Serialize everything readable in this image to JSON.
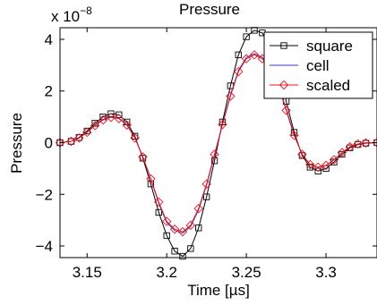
{
  "chart_data": {
    "type": "line",
    "title": "Pressure",
    "xlabel": "Time [µs]",
    "ylabel": "Pressure",
    "y_multiplier_label": "x 10",
    "y_multiplier_exp": "−8",
    "xlim": [
      3.133,
      3.332
    ],
    "ylim": [
      -4.45e-08,
      4.45e-08
    ],
    "x_ticks": [
      3.15,
      3.2,
      3.25,
      3.3
    ],
    "x_tick_labels": [
      "3.15",
      "3.2",
      "3.25",
      "3.3"
    ],
    "y_ticks": [
      -4e-08,
      -2e-08,
      0,
      2e-08,
      4e-08
    ],
    "y_tick_labels": [
      "−4",
      "−2",
      "0",
      "2",
      "4"
    ],
    "grid": false,
    "legend_placement": "top-right",
    "x": [
      3.133,
      3.14,
      3.145,
      3.15,
      3.155,
      3.16,
      3.165,
      3.17,
      3.175,
      3.18,
      3.185,
      3.19,
      3.195,
      3.2,
      3.205,
      3.21,
      3.215,
      3.22,
      3.225,
      3.23,
      3.235,
      3.24,
      3.245,
      3.25,
      3.255,
      3.26,
      3.265,
      3.27,
      3.275,
      3.28,
      3.285,
      3.29,
      3.295,
      3.3,
      3.305,
      3.31,
      3.315,
      3.32,
      3.325,
      3.332
    ],
    "series": [
      {
        "name": "square",
        "color": "#000000",
        "marker": "square",
        "values": [
          0.0,
          5e-10,
          2e-09,
          4.5e-09,
          7.5e-09,
          1e-08,
          1.12e-08,
          1.08e-08,
          8e-09,
          2.5e-09,
          -6e-09,
          -1.6e-08,
          -2.7e-08,
          -3.6e-08,
          -4.2e-08,
          -4.4e-08,
          -4.1e-08,
          -3.3e-08,
          -2.1e-08,
          -7e-09,
          8e-09,
          2.2e-08,
          3.4e-08,
          4.1e-08,
          4.35e-08,
          4.25e-08,
          3.7e-08,
          2.8e-08,
          1.6e-08,
          4e-09,
          -5e-09,
          -9.5e-09,
          -1.1e-08,
          -1e-08,
          -7.5e-09,
          -4.5e-09,
          -2e-09,
          -7e-10,
          -2e-10,
          0.0
        ]
      },
      {
        "name": "cell",
        "color": "#3a3ab0",
        "marker": "none",
        "values": [
          0.0,
          5e-10,
          1.8e-09,
          4e-09,
          6.8e-09,
          9e-09,
          1e-08,
          9.5e-09,
          7e-09,
          2e-09,
          -5.5e-09,
          -1.4e-08,
          -2.35e-08,
          -3.1e-08,
          -3.4e-08,
          -3.5e-08,
          -3.25e-08,
          -2.6e-08,
          -1.65e-08,
          -5e-09,
          7e-09,
          1.85e-08,
          2.8e-08,
          3.3e-08,
          3.45e-08,
          3.3e-08,
          2.95e-08,
          2.25e-08,
          1.3e-08,
          3e-09,
          -4.5e-09,
          -8.5e-09,
          -9.5e-09,
          -8.8e-09,
          -6.6e-09,
          -3.8e-09,
          -1.6e-09,
          -5e-10,
          -1e-10,
          0.0
        ]
      },
      {
        "name": "scaled",
        "color": "#e8141e",
        "marker": "diamond",
        "values": [
          0.0,
          5e-10,
          1.8e-09,
          4e-09,
          6.6e-09,
          8.8e-09,
          9.8e-09,
          9.3e-09,
          6.8e-09,
          1.8e-09,
          -5.5e-09,
          -1.4e-08,
          -2.3e-08,
          -3.05e-08,
          -3.35e-08,
          -3.45e-08,
          -3.2e-08,
          -2.55e-08,
          -1.6e-08,
          -4.5e-09,
          7e-09,
          1.8e-08,
          2.75e-08,
          3.25e-08,
          3.4e-08,
          3.25e-08,
          2.9e-08,
          2.2e-08,
          1.25e-08,
          2.8e-09,
          -4.5e-09,
          -8.5e-09,
          -9.5e-09,
          -8.8e-09,
          -6.6e-09,
          -3.8e-09,
          -1.6e-09,
          -5e-10,
          -1e-10,
          0.0
        ]
      }
    ]
  }
}
